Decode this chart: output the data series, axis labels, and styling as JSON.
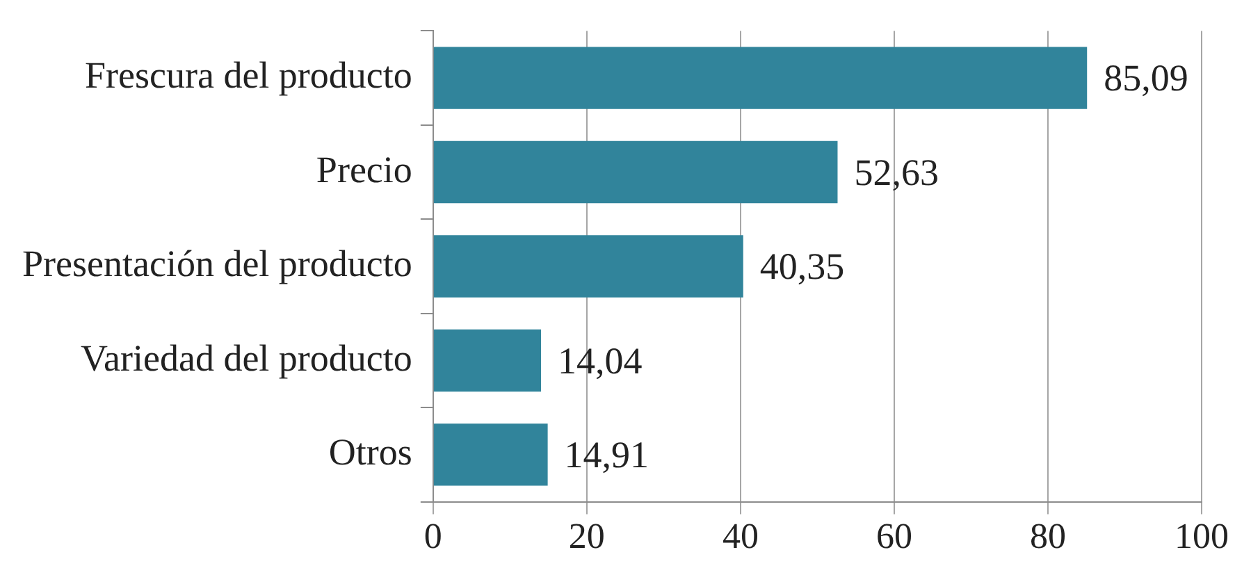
{
  "chart_data": {
    "type": "bar",
    "orientation": "horizontal",
    "categories": [
      "Frescura del producto",
      "Precio",
      "Presentación del producto",
      "Variedad del producto",
      "Otros"
    ],
    "values": [
      85.09,
      52.63,
      40.35,
      14.04,
      14.91
    ],
    "color": "#31849b",
    "value_labels": [
      "85,09",
      "52,63",
      "40,35",
      "14,04",
      "14,91"
    ],
    "xlim": [
      0,
      100
    ],
    "xticks": [
      0,
      20,
      40,
      60,
      80,
      100
    ],
    "grid": "x"
  }
}
